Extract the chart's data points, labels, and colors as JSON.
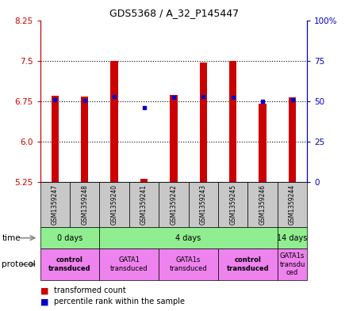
{
  "title": "GDS5368 / A_32_P145447",
  "samples": [
    "GSM1359247",
    "GSM1359248",
    "GSM1359240",
    "GSM1359241",
    "GSM1359242",
    "GSM1359243",
    "GSM1359245",
    "GSM1359246",
    "GSM1359244"
  ],
  "red_values": [
    6.85,
    6.83,
    7.5,
    5.3,
    6.87,
    7.47,
    7.5,
    6.7,
    6.82
  ],
  "blue_values": [
    6.78,
    6.76,
    6.83,
    6.63,
    6.82,
    6.83,
    6.82,
    6.75,
    6.78
  ],
  "ymin": 5.25,
  "ymax": 8.25,
  "y_ticks_left": [
    5.25,
    6.0,
    6.75,
    7.5,
    8.25
  ],
  "y_ticks_right_vals": [
    0,
    25,
    50,
    75,
    100
  ],
  "left_axis_color": "#CC0000",
  "right_axis_color": "#0000CC",
  "bar_color": "#CC0000",
  "dot_color": "#0000CC",
  "sample_bg": "#C8C8C8",
  "time_groups": [
    {
      "label": "0 days",
      "start": 0,
      "end": 2,
      "color": "#90EE90"
    },
    {
      "label": "4 days",
      "start": 2,
      "end": 8,
      "color": "#90EE90"
    },
    {
      "label": "14 days",
      "start": 8,
      "end": 9,
      "color": "#90EE90"
    }
  ],
  "protocol_groups": [
    {
      "label": "control\ntransduced",
      "start": 0,
      "end": 2,
      "color": "#EE82EE",
      "bold": true
    },
    {
      "label": "GATA1\ntransduced",
      "start": 2,
      "end": 4,
      "color": "#EE82EE",
      "bold": false
    },
    {
      "label": "GATA1s\ntransduced",
      "start": 4,
      "end": 6,
      "color": "#EE82EE",
      "bold": false
    },
    {
      "label": "control\ntransduced",
      "start": 6,
      "end": 8,
      "color": "#EE82EE",
      "bold": true
    },
    {
      "label": "GATA1s\ntransdu\nced",
      "start": 8,
      "end": 9,
      "color": "#EE82EE",
      "bold": false
    }
  ]
}
